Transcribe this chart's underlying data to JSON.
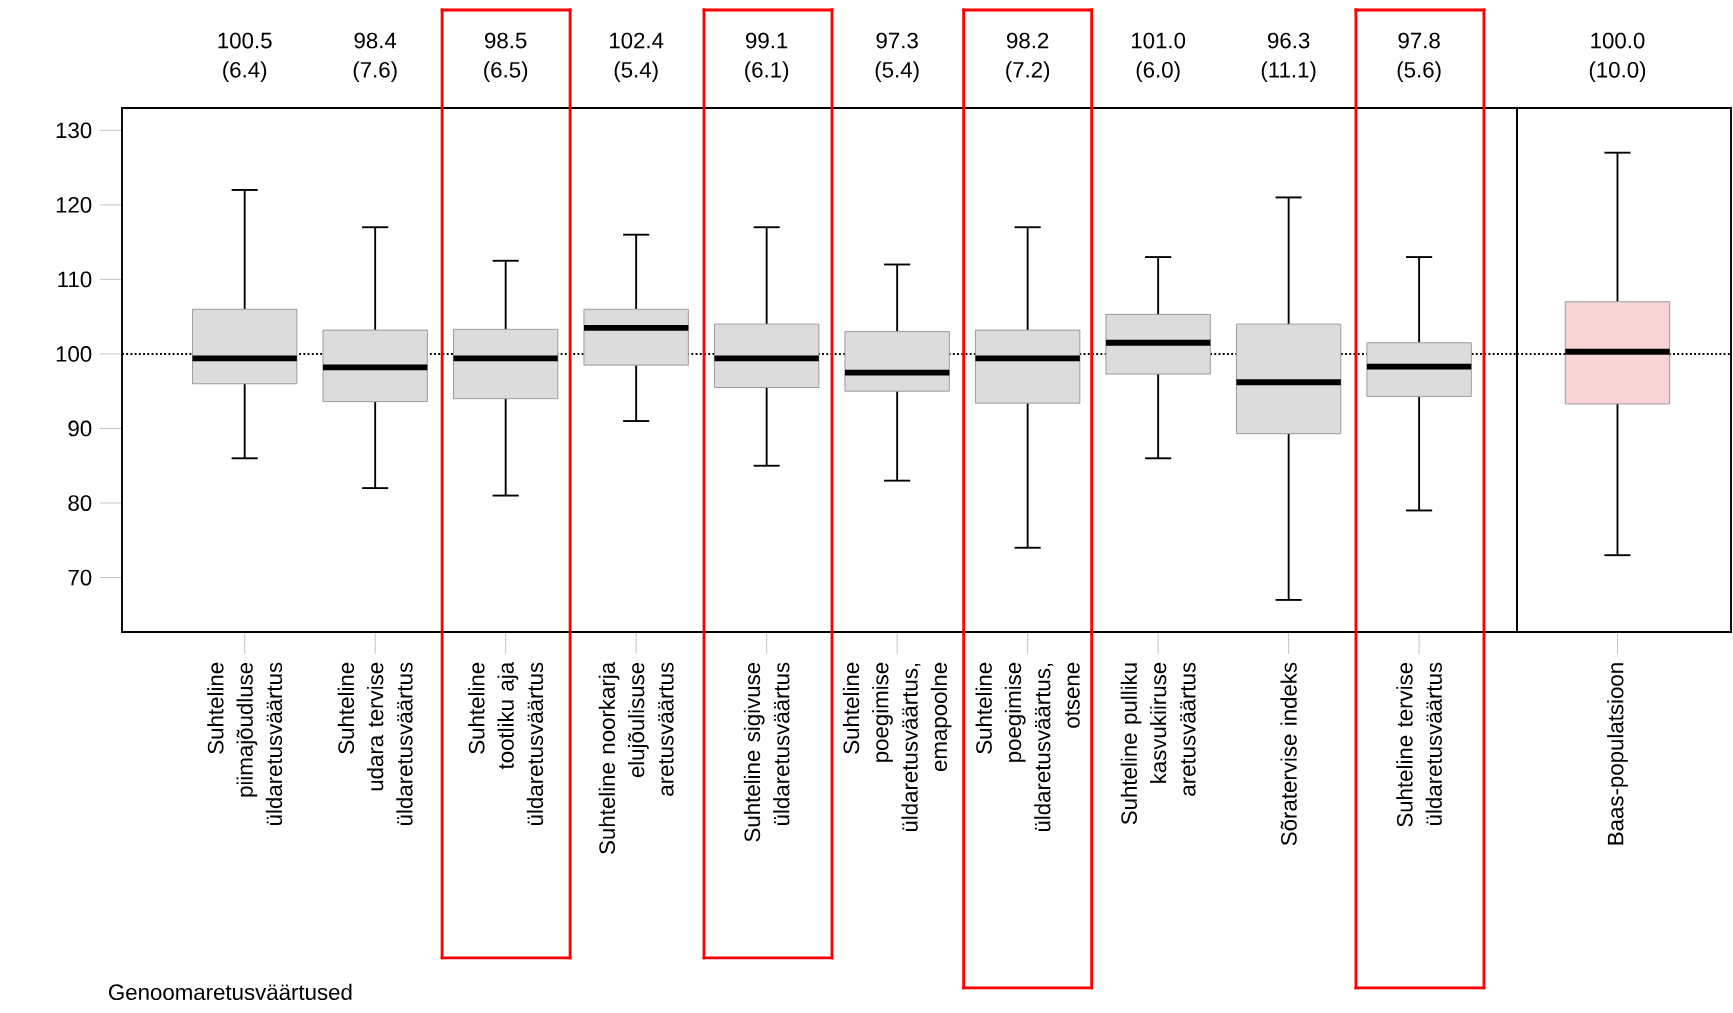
{
  "chart_data": [
    {
      "type": "box",
      "categories": [
        "Suhteline piimajõudluse üldaretusväärtus",
        "Suhteline udara tervise üldaretusväärtus",
        "Suhteline tootliku aja üldaretusväärtus",
        "Suhteline noorkarja elujõulisuse aretusväärtus",
        "Suhteline sigivuse üldaretusväärtus",
        "Suhteline poegimise üldaretusväärtus, emapoolne",
        "Suhteline poegimise üldaretusväärtus, otsene",
        "Suhteline pulliku kasvukiiruse aretusväärtus",
        "Sõratervise indeks",
        "Suhteline tervise üldaretusväärtus"
      ],
      "boxes": [
        {
          "low": 86,
          "q1": 96,
          "median": 99.4,
          "q3": 106,
          "high": 122
        },
        {
          "low": 82,
          "q1": 93.6,
          "median": 98.2,
          "q3": 103.2,
          "high": 117
        },
        {
          "low": 81,
          "q1": 94,
          "median": 99.4,
          "q3": 103.3,
          "high": 112.5
        },
        {
          "low": 91,
          "q1": 98.5,
          "median": 103.5,
          "q3": 106,
          "high": 116
        },
        {
          "low": 85,
          "q1": 95.5,
          "median": 99.4,
          "q3": 104,
          "high": 117
        },
        {
          "low": 83,
          "q1": 95,
          "median": 97.5,
          "q3": 103,
          "high": 112
        },
        {
          "low": 74,
          "q1": 93.4,
          "median": 99.4,
          "q3": 103.2,
          "high": 117
        },
        {
          "low": 86,
          "q1": 97.3,
          "median": 101.5,
          "q3": 105.3,
          "high": 113
        },
        {
          "low": 67,
          "q1": 89.3,
          "median": 96.2,
          "q3": 104,
          "high": 121
        },
        {
          "low": 79,
          "q1": 94.3,
          "median": 98.3,
          "q3": 101.5,
          "high": 113
        }
      ],
      "colors": [
        "#dcdcdc",
        "#dcdcdc",
        "#dcdcdc",
        "#dcdcdc",
        "#dcdcdc",
        "#dcdcdc",
        "#dcdcdc",
        "#dcdcdc",
        "#dcdcdc",
        "#dcdcdc"
      ],
      "annotations": [
        "100.5 (6.4)",
        "98.4 (7.6)",
        "98.5 (6.5)",
        "102.4 (5.4)",
        "99.1 (6.1)",
        "97.3 (5.4)",
        "98.2 (7.2)",
        "101.0 (6.0)",
        "96.3 (11.1)",
        "97.8 (5.6)"
      ],
      "xlabel": "Genoomaretusväärtused",
      "ylim": [
        62.7,
        133
      ],
      "yticks": [
        70,
        80,
        90,
        100,
        110,
        120,
        130
      ],
      "ref_lines": [
        {
          "axis": "y",
          "value": 100,
          "line_style": "dotted"
        }
      ]
    },
    {
      "type": "box",
      "categories": [
        "Baas-populatsioon"
      ],
      "boxes": [
        {
          "low": 73,
          "q1": 93.3,
          "median": 100.3,
          "q3": 107,
          "high": 127
        }
      ],
      "colors": [
        "#f8d4d6"
      ],
      "annotations": [
        "100.0 (10.0)"
      ],
      "ylim": [
        62.7,
        133
      ],
      "tick_labels": "x",
      "ref_lines": [
        {
          "axis": "y",
          "value": 100,
          "line_style": "dotted"
        }
      ]
    }
  ]
}
